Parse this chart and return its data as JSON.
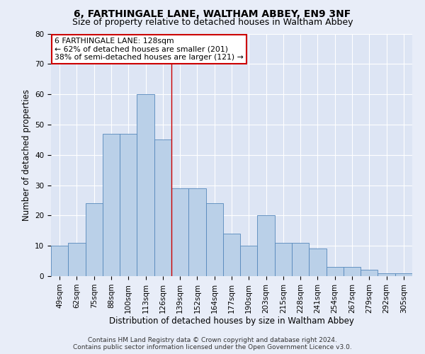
{
  "title": "6, FARTHINGALE LANE, WALTHAM ABBEY, EN9 3NF",
  "subtitle": "Size of property relative to detached houses in Waltham Abbey",
  "xlabel": "Distribution of detached houses by size in Waltham Abbey",
  "ylabel": "Number of detached properties",
  "bin_labels": [
    "49sqm",
    "62sqm",
    "75sqm",
    "88sqm",
    "100sqm",
    "113sqm",
    "126sqm",
    "139sqm",
    "152sqm",
    "164sqm",
    "177sqm",
    "190sqm",
    "203sqm",
    "215sqm",
    "228sqm",
    "241sqm",
    "254sqm",
    "267sqm",
    "279sqm",
    "292sqm",
    "305sqm"
  ],
  "bar_heights": [
    10,
    11,
    24,
    47,
    47,
    60,
    45,
    29,
    29,
    24,
    14,
    10,
    20,
    11,
    11,
    9,
    3,
    3,
    2,
    1,
    1
  ],
  "ylim": [
    0,
    80
  ],
  "yticks": [
    0,
    10,
    20,
    30,
    40,
    50,
    60,
    70,
    80
  ],
  "bar_color": "#bad0e8",
  "bar_edge_color": "#5588bb",
  "vline_color": "#cc0000",
  "vline_x_index": 6.5,
  "annotation_box_text": "6 FARTHINGALE LANE: 128sqm\n← 62% of detached houses are smaller (201)\n38% of semi-detached houses are larger (121) →",
  "annotation_box_color": "#cc0000",
  "annotation_box_facecolor": "#ffffff",
  "footer_line1": "Contains HM Land Registry data © Crown copyright and database right 2024.",
  "footer_line2": "Contains public sector information licensed under the Open Government Licence v3.0.",
  "fig_bg_color": "#e8edf8",
  "ax_bg_color": "#dde5f4",
  "grid_color": "#ffffff",
  "title_fontsize": 10,
  "subtitle_fontsize": 9,
  "xlabel_fontsize": 8.5,
  "ylabel_fontsize": 8.5,
  "tick_fontsize": 7.5,
  "ann_fontsize": 7.8,
  "footer_fontsize": 6.5
}
